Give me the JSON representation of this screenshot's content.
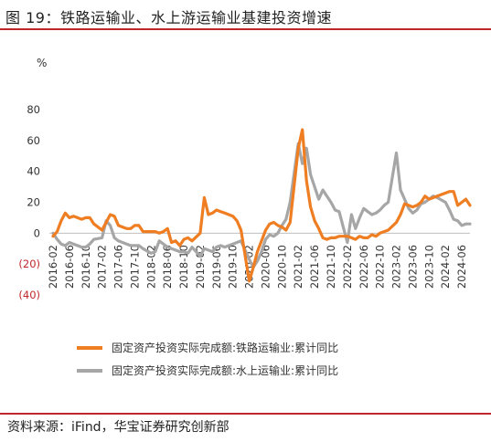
{
  "figure": {
    "title": "图 19：铁路运输业、水上游运输业基建投资增速",
    "source": "资料来源：iFind，华宝证券研究创新部",
    "accent_color": "#c0272d"
  },
  "chart_data": {
    "type": "line",
    "title": "",
    "unit_label": "%",
    "xlabel": "",
    "ylabel": "",
    "ylim": [
      -40,
      80
    ],
    "y_ticks": [
      {
        "value": 80,
        "label": "80"
      },
      {
        "value": 60,
        "label": "60"
      },
      {
        "value": 40,
        "label": "40"
      },
      {
        "value": 20,
        "label": "20"
      },
      {
        "value": 0,
        "label": "0"
      },
      {
        "value": -20,
        "label": "(20)"
      },
      {
        "value": -40,
        "label": "(40)"
      }
    ],
    "x_tick_labels": [
      "2016-02",
      "2016-06",
      "2016-10",
      "2017-02",
      "2017-06",
      "2017-10",
      "2018-02",
      "2018-06",
      "2018-10",
      "2019-02",
      "2019-06",
      "2019-10",
      "2020-02",
      "2020-06",
      "2020-10",
      "2021-02",
      "2021-06",
      "2021-10",
      "2022-02",
      "2022-06",
      "2022-10",
      "2023-02",
      "2023-06",
      "2023-10",
      "2024-02",
      "2024-06"
    ],
    "grid": false,
    "legend_position": "bottom",
    "series": [
      {
        "name": "固定资产投资实际完成额:铁路运输业:累计同比",
        "color": "#ef7d22",
        "points": [
          [
            "2016-02",
            -2
          ],
          [
            "2016-03",
            1
          ],
          [
            "2016-04",
            8
          ],
          [
            "2016-05",
            13
          ],
          [
            "2016-06",
            10
          ],
          [
            "2016-07",
            11
          ],
          [
            "2016-08",
            10
          ],
          [
            "2016-09",
            9
          ],
          [
            "2016-10",
            10
          ],
          [
            "2016-11",
            10
          ],
          [
            "2016-12",
            6
          ],
          [
            "2017-02",
            2
          ],
          [
            "2017-03",
            7
          ],
          [
            "2017-04",
            12
          ],
          [
            "2017-05",
            11
          ],
          [
            "2017-06",
            5
          ],
          [
            "2017-07",
            4
          ],
          [
            "2017-08",
            3
          ],
          [
            "2017-09",
            3
          ],
          [
            "2017-10",
            5
          ],
          [
            "2017-11",
            5
          ],
          [
            "2017-12",
            1
          ],
          [
            "2018-02",
            1
          ],
          [
            "2018-03",
            1
          ],
          [
            "2018-04",
            0
          ],
          [
            "2018-05",
            1
          ],
          [
            "2018-06",
            3
          ],
          [
            "2018-07",
            -6
          ],
          [
            "2018-08",
            -5
          ],
          [
            "2018-09",
            -8
          ],
          [
            "2018-10",
            -4
          ],
          [
            "2018-11",
            -3
          ],
          [
            "2018-12",
            -5
          ],
          [
            "2019-02",
            0
          ],
          [
            "2019-03",
            23
          ],
          [
            "2019-04",
            12
          ],
          [
            "2019-05",
            13
          ],
          [
            "2019-06",
            15
          ],
          [
            "2019-07",
            14
          ],
          [
            "2019-08",
            13
          ],
          [
            "2019-09",
            12
          ],
          [
            "2019-10",
            11
          ],
          [
            "2019-11",
            8
          ],
          [
            "2019-12",
            2
          ],
          [
            "2020-02",
            -31
          ],
          [
            "2020-03",
            -22
          ],
          [
            "2020-04",
            -12
          ],
          [
            "2020-05",
            -5
          ],
          [
            "2020-06",
            2
          ],
          [
            "2020-07",
            6
          ],
          [
            "2020-08",
            7
          ],
          [
            "2020-09",
            5
          ],
          [
            "2020-10",
            4
          ],
          [
            "2020-11",
            2
          ],
          [
            "2020-12",
            7
          ],
          [
            "2021-02",
            55
          ],
          [
            "2021-03",
            67
          ],
          [
            "2021-04",
            34
          ],
          [
            "2021-05",
            17
          ],
          [
            "2021-06",
            8
          ],
          [
            "2021-07",
            3
          ],
          [
            "2021-08",
            -3
          ],
          [
            "2021-09",
            -4
          ],
          [
            "2021-10",
            -3
          ],
          [
            "2021-11",
            -3
          ],
          [
            "2021-12",
            -2
          ],
          [
            "2022-02",
            -2
          ],
          [
            "2022-03",
            -3
          ],
          [
            "2022-04",
            -4
          ],
          [
            "2022-05",
            -2
          ],
          [
            "2022-06",
            -3
          ],
          [
            "2022-07",
            -3
          ],
          [
            "2022-08",
            -1
          ],
          [
            "2022-09",
            -2
          ],
          [
            "2022-10",
            0
          ],
          [
            "2022-11",
            1
          ],
          [
            "2022-12",
            2
          ],
          [
            "2023-02",
            7
          ],
          [
            "2023-03",
            12
          ],
          [
            "2023-04",
            19
          ],
          [
            "2023-05",
            18
          ],
          [
            "2023-06",
            17
          ],
          [
            "2023-07",
            18
          ],
          [
            "2023-08",
            20
          ],
          [
            "2023-09",
            24
          ],
          [
            "2023-10",
            22
          ],
          [
            "2023-11",
            23
          ],
          [
            "2023-12",
            24
          ],
          [
            "2024-02",
            26
          ],
          [
            "2024-03",
            27
          ],
          [
            "2024-04",
            27
          ],
          [
            "2024-05",
            18
          ],
          [
            "2024-06",
            20
          ],
          [
            "2024-07",
            22
          ],
          [
            "2024-08",
            18
          ]
        ]
      },
      {
        "name": "固定资产投资实际完成额:水上运输业:累计同比",
        "color": "#a6a6a6",
        "points": [
          [
            "2016-02",
            0
          ],
          [
            "2016-03",
            -4
          ],
          [
            "2016-04",
            -7
          ],
          [
            "2016-05",
            -8
          ],
          [
            "2016-06",
            -6
          ],
          [
            "2016-07",
            -7
          ],
          [
            "2016-08",
            -8
          ],
          [
            "2016-09",
            -9
          ],
          [
            "2016-10",
            -9
          ],
          [
            "2016-11",
            -7
          ],
          [
            "2016-12",
            -4
          ],
          [
            "2017-02",
            -3
          ],
          [
            "2017-03",
            8
          ],
          [
            "2017-04",
            5
          ],
          [
            "2017-05",
            -3
          ],
          [
            "2017-06",
            -5
          ],
          [
            "2017-07",
            -6
          ],
          [
            "2017-08",
            -7
          ],
          [
            "2017-09",
            -8
          ],
          [
            "2017-10",
            -8
          ],
          [
            "2017-11",
            -8
          ],
          [
            "2017-12",
            -10
          ],
          [
            "2018-02",
            -13
          ],
          [
            "2018-03",
            -12
          ],
          [
            "2018-04",
            -5
          ],
          [
            "2018-05",
            -7
          ],
          [
            "2018-06",
            -9
          ],
          [
            "2018-07",
            -10
          ],
          [
            "2018-08",
            -11
          ],
          [
            "2018-09",
            -12
          ],
          [
            "2018-10",
            -12
          ],
          [
            "2018-11",
            -13
          ],
          [
            "2018-12",
            -9
          ],
          [
            "2019-02",
            -15
          ],
          [
            "2019-03",
            -10
          ],
          [
            "2019-04",
            -11
          ],
          [
            "2019-05",
            -12
          ],
          [
            "2019-06",
            -9
          ],
          [
            "2019-07",
            -8
          ],
          [
            "2019-08",
            -9
          ],
          [
            "2019-09",
            -8
          ],
          [
            "2019-10",
            -7
          ],
          [
            "2019-11",
            -6
          ],
          [
            "2019-12",
            -5
          ],
          [
            "2020-02",
            -17
          ],
          [
            "2020-03",
            -22
          ],
          [
            "2020-04",
            -18
          ],
          [
            "2020-05",
            -12
          ],
          [
            "2020-06",
            -4
          ],
          [
            "2020-07",
            -1
          ],
          [
            "2020-08",
            -2
          ],
          [
            "2020-09",
            0
          ],
          [
            "2020-10",
            5
          ],
          [
            "2020-11",
            9
          ],
          [
            "2020-12",
            20
          ],
          [
            "2021-02",
            58
          ],
          [
            "2021-03",
            45
          ],
          [
            "2021-04",
            55
          ],
          [
            "2021-05",
            38
          ],
          [
            "2021-06",
            30
          ],
          [
            "2021-07",
            22
          ],
          [
            "2021-08",
            28
          ],
          [
            "2021-09",
            24
          ],
          [
            "2021-10",
            20
          ],
          [
            "2021-11",
            15
          ],
          [
            "2021-12",
            14
          ],
          [
            "2022-02",
            -6
          ],
          [
            "2022-03",
            12
          ],
          [
            "2022-04",
            3
          ],
          [
            "2022-05",
            10
          ],
          [
            "2022-06",
            16
          ],
          [
            "2022-07",
            14
          ],
          [
            "2022-08",
            12
          ],
          [
            "2022-09",
            13
          ],
          [
            "2022-10",
            15
          ],
          [
            "2022-11",
            18
          ],
          [
            "2022-12",
            20
          ],
          [
            "2023-02",
            52
          ],
          [
            "2023-03",
            28
          ],
          [
            "2023-04",
            22
          ],
          [
            "2023-05",
            16
          ],
          [
            "2023-06",
            13
          ],
          [
            "2023-07",
            15
          ],
          [
            "2023-08",
            19
          ],
          [
            "2023-09",
            20
          ],
          [
            "2023-10",
            22
          ],
          [
            "2023-11",
            24
          ],
          [
            "2023-12",
            23
          ],
          [
            "2024-02",
            20
          ],
          [
            "2024-03",
            15
          ],
          [
            "2024-04",
            9
          ],
          [
            "2024-05",
            8
          ],
          [
            "2024-06",
            5
          ],
          [
            "2024-07",
            6
          ],
          [
            "2024-08",
            6
          ]
        ]
      }
    ]
  }
}
